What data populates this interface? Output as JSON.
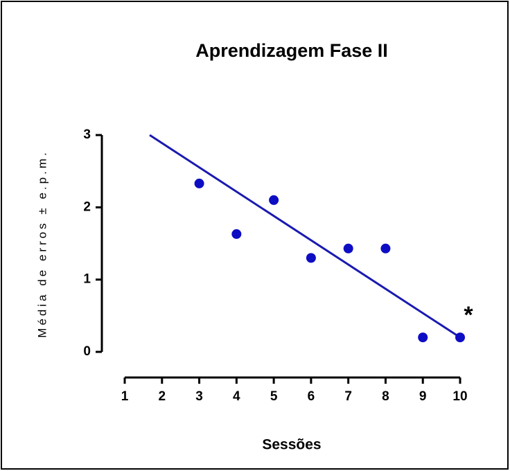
{
  "chart_data": {
    "type": "scatter",
    "title": "Aprendizagem Fase II",
    "x_label": "Sessões",
    "y_label": "Média de erros ± e.p.m.",
    "series": [
      {
        "x": [
          3,
          4,
          5,
          6,
          7,
          8,
          9,
          10
        ],
        "values": [
          2.33,
          1.63,
          2.1,
          1.3,
          1.43,
          1.43,
          0.2,
          0.2
        ],
        "color": "#0d0dc4"
      }
    ],
    "fit_line": {
      "x": [
        1.67,
        10
      ],
      "y": [
        3.0,
        0.2
      ],
      "color": "#1a1ab0"
    },
    "annotations": [
      {
        "text": "*"
      }
    ],
    "xlim": [
      1,
      10
    ],
    "xticks": [
      1,
      2,
      3,
      4,
      5,
      6,
      7,
      8,
      9,
      10
    ],
    "ylim": [
      0,
      3
    ],
    "yticks": [
      0,
      1,
      2,
      3
    ]
  }
}
